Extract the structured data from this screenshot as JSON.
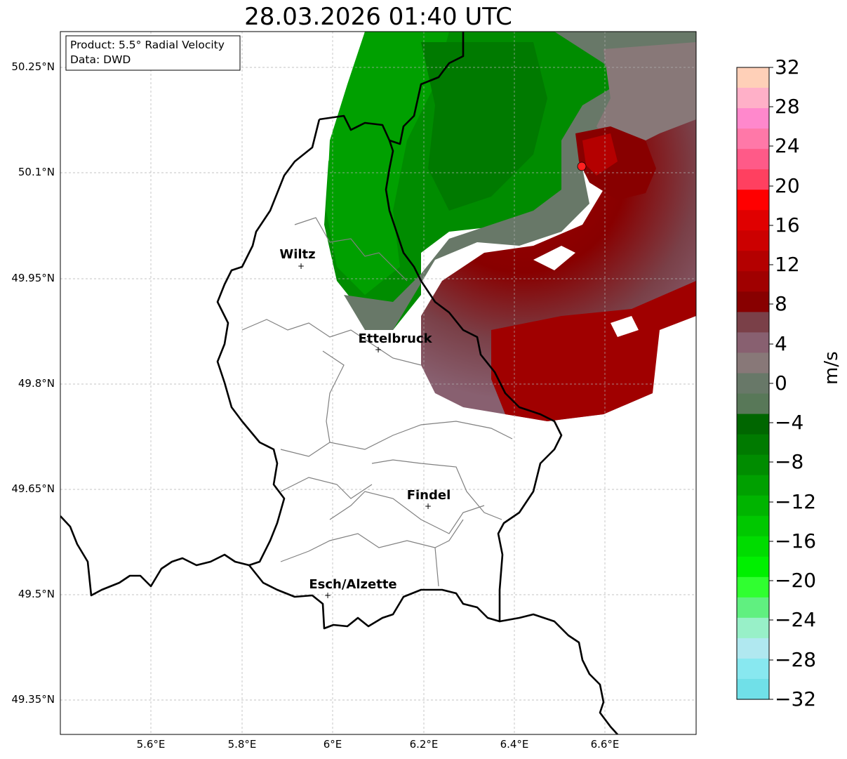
{
  "title": "28.03.2026 01:40 UTC",
  "info_box": {
    "product": "Product: 5.5° Radial Velocity",
    "source": "Data: DWD"
  },
  "map": {
    "lat_labels": [
      "50.25°N",
      "50.1°N",
      "49.95°N",
      "49.8°N",
      "49.65°N",
      "49.5°N",
      "49.35°N"
    ],
    "lon_labels": [
      "5.6°E",
      "5.8°E",
      "6°E",
      "6.2°E",
      "6.4°E",
      "6.6°E"
    ],
    "cities": [
      {
        "name": "Wiltz",
        "lon": 5.93,
        "lat": 49.966
      },
      {
        "name": "Ettelbruck",
        "lon": 6.1,
        "lat": 49.847
      },
      {
        "name": "Findel",
        "lon": 6.21,
        "lat": 49.626
      },
      {
        "name": "Esch/Alzette",
        "lon": 5.99,
        "lat": 49.5
      }
    ],
    "radar_site": {
      "lon": 6.548,
      "lat": 50.11,
      "color": "#ff2020"
    }
  },
  "colorbar": {
    "label": "m/s",
    "ticks": [
      "32",
      "28",
      "24",
      "20",
      "16",
      "12",
      "8",
      "4",
      "0",
      "−4",
      "−8",
      "−12",
      "−16",
      "−20",
      "−24",
      "−28",
      "−32"
    ],
    "colors_top_to_bottom": [
      "#ffd0b8",
      "#ffb0c8",
      "#ff88cc",
      "#ff78a8",
      "#ff5a88",
      "#ff4060",
      "#ff0000",
      "#e00000",
      "#cc0000",
      "#b40000",
      "#a00000",
      "#880000",
      "#7a4048",
      "#886070",
      "#887878",
      "#687868",
      "#587858",
      "#006600",
      "#007a00",
      "#008c00",
      "#00a000",
      "#00b400",
      "#00c800",
      "#00dc00",
      "#00f000",
      "#30ff30",
      "#60f080",
      "#98f0c8",
      "#b0e8f0",
      "#88e8f0",
      "#70e0e8"
    ]
  }
}
